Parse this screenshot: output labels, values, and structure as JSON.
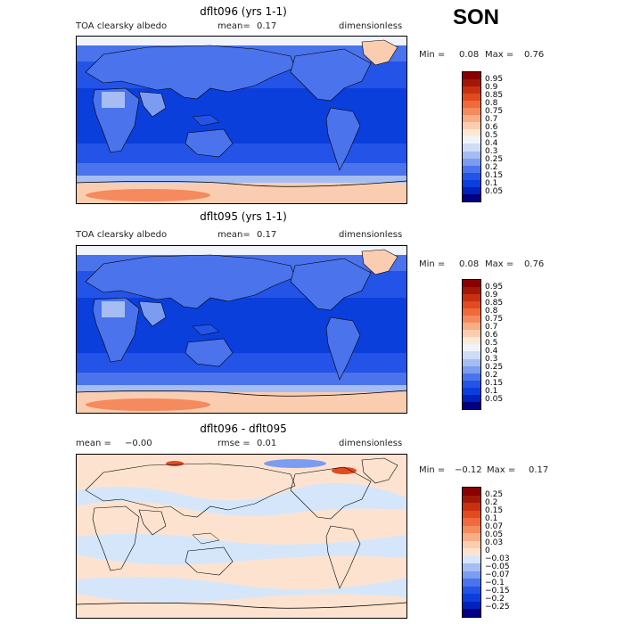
{
  "season": "SON",
  "panels": [
    {
      "title": "dflt096 (yrs 1-1)",
      "left_label": "TOA clearsky albedo",
      "mean_text": "mean=",
      "mean_value": "0.17",
      "units": "dimensionless",
      "min_text": "Min =",
      "min_value": "0.08",
      "max_text": "Max =",
      "max_value": "0.76",
      "colorbar_colors": [
        "#000080",
        "#0022bb",
        "#0b3fdc",
        "#2453e7",
        "#4a73ec",
        "#7b9cf0",
        "#a5bdf3",
        "#cfdcf7",
        "#f1f3fb",
        "#fde8d6",
        "#fbcdb0",
        "#f8ad86",
        "#f48a5e",
        "#ef6a3c",
        "#e24b20",
        "#c9300f",
        "#a11808",
        "#8a0000"
      ],
      "colorbar_labels": [
        "0.95",
        "0.9",
        "0.85",
        "0.8",
        "0.75",
        "0.7",
        "0.6",
        "0.5",
        "0.4",
        "0.3",
        "0.25",
        "0.2",
        "0.15",
        "0.1",
        "0.05"
      ]
    },
    {
      "title": "dflt095 (yrs 1-1)",
      "left_label": "TOA clearsky albedo",
      "mean_text": "mean=",
      "mean_value": "0.17",
      "units": "dimensionless",
      "min_text": "Min =",
      "min_value": "0.08",
      "max_text": "Max =",
      "max_value": "0.76",
      "colorbar_colors": [
        "#000080",
        "#0022bb",
        "#0b3fdc",
        "#2453e7",
        "#4a73ec",
        "#7b9cf0",
        "#a5bdf3",
        "#cfdcf7",
        "#f1f3fb",
        "#fde8d6",
        "#fbcdb0",
        "#f8ad86",
        "#f48a5e",
        "#ef6a3c",
        "#e24b20",
        "#c9300f",
        "#a11808",
        "#8a0000"
      ],
      "colorbar_labels": [
        "0.95",
        "0.9",
        "0.85",
        "0.8",
        "0.75",
        "0.7",
        "0.6",
        "0.5",
        "0.4",
        "0.3",
        "0.25",
        "0.2",
        "0.15",
        "0.1",
        "0.05"
      ]
    },
    {
      "title": "dflt096 - dflt095",
      "left_label": "mean =",
      "mean_text": "rmse =",
      "mean_value": "0.01",
      "left_value": "−0.00",
      "units": "dimensionless",
      "min_text": "Min =",
      "min_value": "−0.12",
      "max_text": "Max =",
      "max_value": "0.17",
      "colorbar_colors": [
        "#000080",
        "#0022bb",
        "#0b3fdc",
        "#2453e7",
        "#4a73ec",
        "#7b9cf0",
        "#a5bdf3",
        "#d5e6fa",
        "#fde3cf",
        "#fbcdb0",
        "#f8ad86",
        "#f48a5e",
        "#ef6a3c",
        "#e24b20",
        "#c9300f",
        "#a11808",
        "#8a0000"
      ],
      "colorbar_labels": [
        "0.25",
        "0.2",
        "0.15",
        "0.1",
        "0.07",
        "0.05",
        "0.03",
        "0",
        "−0.03",
        "−0.05",
        "−0.07",
        "−0.1",
        "−0.15",
        "−0.2",
        "−0.25"
      ]
    }
  ]
}
